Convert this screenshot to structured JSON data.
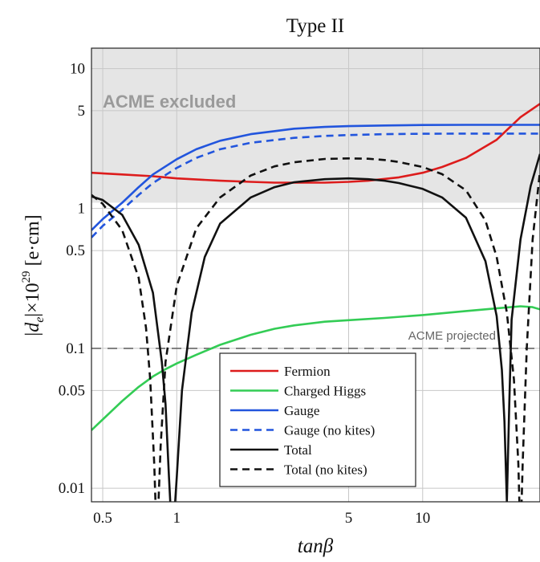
{
  "chart_data": {
    "type": "line",
    "title": "Type II",
    "xlabel": "tanβ",
    "ylabel": "|d_e|×10^29 [e·cm]",
    "x_scale": "log",
    "y_scale": "log",
    "xlim": [
      0.45,
      30
    ],
    "ylim": [
      0.008,
      14
    ],
    "x_ticks": [
      {
        "value": 0.5,
        "label": "0.5"
      },
      {
        "value": 1,
        "label": "1"
      },
      {
        "value": 5,
        "label": "5"
      },
      {
        "value": 10,
        "label": "10"
      }
    ],
    "y_ticks": [
      {
        "value": 0.01,
        "label": "0.01"
      },
      {
        "value": 0.05,
        "label": "0.05"
      },
      {
        "value": 0.1,
        "label": "0.1"
      },
      {
        "value": 0.5,
        "label": "0.5"
      },
      {
        "value": 1,
        "label": "1"
      },
      {
        "value": 5,
        "label": "5"
      },
      {
        "value": 10,
        "label": "10"
      }
    ],
    "grid": true,
    "legend_position": "bottom-center",
    "excluded_region": {
      "label": "ACME excluded",
      "y_from": 1.1,
      "y_to": 14,
      "color": "#e5e5e5",
      "label_color": "#9a9a9a"
    },
    "reference_line": {
      "label": "ACME projected",
      "y": 0.1,
      "color": "#666666"
    },
    "series": [
      {
        "name": "Fermion",
        "color": "#dd1c1c",
        "dash": "solid",
        "points": [
          [
            0.45,
            1.8
          ],
          [
            0.6,
            1.75
          ],
          [
            0.8,
            1.7
          ],
          [
            1,
            1.64
          ],
          [
            1.5,
            1.58
          ],
          [
            2,
            1.55
          ],
          [
            2.5,
            1.53
          ],
          [
            3,
            1.53
          ],
          [
            4,
            1.53
          ],
          [
            5,
            1.55
          ],
          [
            6,
            1.58
          ],
          [
            8,
            1.67
          ],
          [
            10,
            1.8
          ],
          [
            12,
            1.98
          ],
          [
            15,
            2.3
          ],
          [
            20,
            3.1
          ],
          [
            25,
            4.5
          ],
          [
            30,
            5.6
          ]
        ]
      },
      {
        "name": "Charged Higgs",
        "color": "#33cc55",
        "dash": "solid",
        "points": [
          [
            0.45,
            0.026
          ],
          [
            0.5,
            0.031
          ],
          [
            0.6,
            0.042
          ],
          [
            0.7,
            0.053
          ],
          [
            0.8,
            0.063
          ],
          [
            0.9,
            0.071
          ],
          [
            1,
            0.078
          ],
          [
            1.2,
            0.09
          ],
          [
            1.5,
            0.106
          ],
          [
            2,
            0.125
          ],
          [
            2.5,
            0.138
          ],
          [
            3,
            0.146
          ],
          [
            4,
            0.155
          ],
          [
            5,
            0.159
          ],
          [
            7,
            0.165
          ],
          [
            10,
            0.173
          ],
          [
            15,
            0.185
          ],
          [
            20,
            0.193
          ],
          [
            25,
            0.2
          ],
          [
            28,
            0.197
          ],
          [
            30,
            0.19
          ]
        ]
      },
      {
        "name": "Gauge",
        "color": "#2255dd",
        "dash": "solid",
        "points": [
          [
            0.45,
            0.7
          ],
          [
            0.5,
            0.84
          ],
          [
            0.6,
            1.1
          ],
          [
            0.7,
            1.42
          ],
          [
            0.8,
            1.75
          ],
          [
            1,
            2.25
          ],
          [
            1.2,
            2.65
          ],
          [
            1.5,
            3.05
          ],
          [
            2,
            3.4
          ],
          [
            3,
            3.72
          ],
          [
            4,
            3.83
          ],
          [
            5,
            3.88
          ],
          [
            7,
            3.92
          ],
          [
            10,
            3.95
          ],
          [
            15,
            3.96
          ],
          [
            20,
            3.96
          ],
          [
            30,
            3.96
          ]
        ]
      },
      {
        "name": "Gauge (no kites)",
        "color": "#2255dd",
        "dash": "dashed",
        "points": [
          [
            0.45,
            0.62
          ],
          [
            0.5,
            0.75
          ],
          [
            0.6,
            0.98
          ],
          [
            0.7,
            1.25
          ],
          [
            0.8,
            1.52
          ],
          [
            1,
            1.95
          ],
          [
            1.2,
            2.3
          ],
          [
            1.5,
            2.65
          ],
          [
            2,
            2.95
          ],
          [
            3,
            3.2
          ],
          [
            4,
            3.3
          ],
          [
            5,
            3.35
          ],
          [
            7,
            3.4
          ],
          [
            10,
            3.42
          ],
          [
            15,
            3.43
          ],
          [
            20,
            3.43
          ],
          [
            30,
            3.43
          ]
        ]
      },
      {
        "name": "Total",
        "color": "#111111",
        "dash": "solid",
        "points": [
          [
            0.45,
            1.22
          ],
          [
            0.5,
            1.15
          ],
          [
            0.6,
            0.9
          ],
          [
            0.7,
            0.55
          ],
          [
            0.8,
            0.25
          ],
          [
            0.87,
            0.08
          ],
          [
            0.9,
            0.04
          ],
          [
            0.93,
            0.012
          ],
          [
            0.96,
            0.004
          ],
          [
            1,
            0.012
          ],
          [
            1.05,
            0.05
          ],
          [
            1.15,
            0.18
          ],
          [
            1.3,
            0.45
          ],
          [
            1.5,
            0.78
          ],
          [
            2,
            1.2
          ],
          [
            2.5,
            1.42
          ],
          [
            3,
            1.54
          ],
          [
            4,
            1.62
          ],
          [
            5,
            1.64
          ],
          [
            6,
            1.62
          ],
          [
            7,
            1.58
          ],
          [
            8,
            1.52
          ],
          [
            10,
            1.38
          ],
          [
            12,
            1.2
          ],
          [
            15,
            0.86
          ],
          [
            18,
            0.42
          ],
          [
            20,
            0.17
          ],
          [
            21,
            0.07
          ],
          [
            21.5,
            0.03
          ],
          [
            22,
            0.008
          ],
          [
            22.5,
            0.04
          ],
          [
            23,
            0.16
          ],
          [
            25,
            0.6
          ],
          [
            27.5,
            1.45
          ],
          [
            30,
            2.45
          ]
        ]
      },
      {
        "name": "Total (no kites)",
        "color": "#111111",
        "dash": "dashed",
        "points": [
          [
            0.45,
            1.25
          ],
          [
            0.5,
            1.08
          ],
          [
            0.6,
            0.7
          ],
          [
            0.7,
            0.32
          ],
          [
            0.75,
            0.14
          ],
          [
            0.78,
            0.06
          ],
          [
            0.81,
            0.015
          ],
          [
            0.83,
            0.004
          ],
          [
            0.86,
            0.02
          ],
          [
            0.9,
            0.08
          ],
          [
            1,
            0.28
          ],
          [
            1.2,
            0.72
          ],
          [
            1.5,
            1.2
          ],
          [
            2,
            1.72
          ],
          [
            2.5,
            2.0
          ],
          [
            3,
            2.14
          ],
          [
            4,
            2.26
          ],
          [
            5,
            2.28
          ],
          [
            6,
            2.27
          ],
          [
            7,
            2.22
          ],
          [
            8,
            2.15
          ],
          [
            10,
            1.98
          ],
          [
            12,
            1.76
          ],
          [
            15,
            1.35
          ],
          [
            18,
            0.82
          ],
          [
            20,
            0.45
          ],
          [
            22,
            0.18
          ],
          [
            23.5,
            0.06
          ],
          [
            24.5,
            0.015
          ],
          [
            25,
            0.004
          ],
          [
            25.5,
            0.015
          ],
          [
            26.5,
            0.1
          ],
          [
            28,
            0.6
          ],
          [
            30,
            1.85
          ]
        ]
      }
    ]
  }
}
